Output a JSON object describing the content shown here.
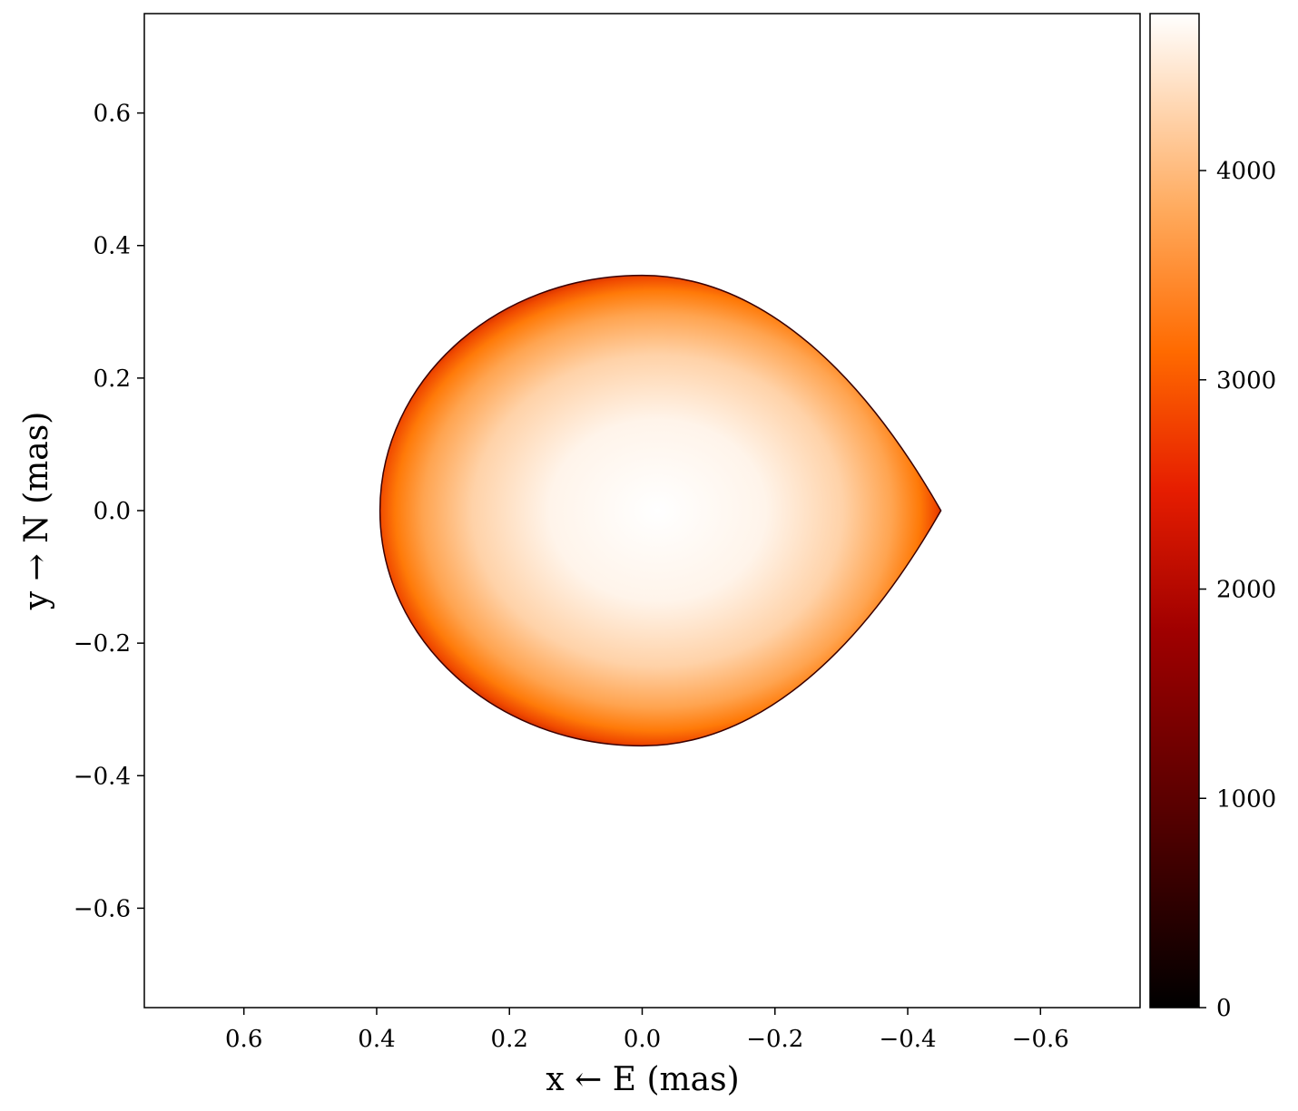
{
  "chart_data": {
    "type": "heatmap",
    "title": "",
    "xlabel": "x ← E (mas)",
    "ylabel": "y → N (mas)",
    "xlim": [
      0.75,
      -0.75
    ],
    "ylim": [
      -0.75,
      0.75
    ],
    "x_inverted": true,
    "xticks": [
      0.6,
      0.4,
      0.2,
      0.0,
      -0.2,
      -0.4,
      -0.6
    ],
    "xtick_labels": [
      "0.6",
      "0.4",
      "0.2",
      "0.0",
      "−0.2",
      "−0.4",
      "−0.6"
    ],
    "yticks": [
      0.6,
      0.4,
      0.2,
      0.0,
      -0.2,
      -0.4,
      -0.6
    ],
    "ytick_labels": [
      "0.6",
      "0.4",
      "0.2",
      "0.0",
      "−0.2",
      "−0.4",
      "−0.6"
    ],
    "grid": false,
    "colormap": "gist_heat",
    "colorbar": {
      "range": [
        0,
        4750
      ],
      "ticks": [
        0,
        1000,
        2000,
        3000,
        4000
      ],
      "tick_labels": [
        "0",
        "1000",
        "2000",
        "3000",
        "4000"
      ]
    },
    "star": {
      "shape": "teardrop",
      "center_x": 0.0,
      "center_y": 0.0,
      "tip_x": -0.45,
      "tip_y": 0.0,
      "back_x": 0.395,
      "top_y": 0.355,
      "bottom_y": -0.355,
      "center_value": 4750,
      "limb_value": 1500
    },
    "colors": {
      "cmap_stops": [
        "#000000",
        "#570000",
        "#a80000",
        "#ff4f00",
        "#ff8e1f",
        "#ffc08a",
        "#ffffff"
      ]
    }
  }
}
